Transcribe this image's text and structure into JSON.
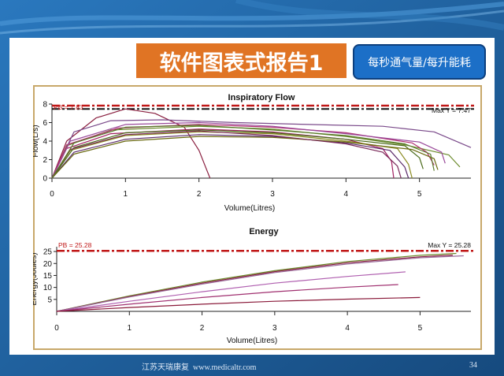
{
  "slide": {
    "title": "软件图表式报告1",
    "subtitle": "每秒通气量/每升能耗",
    "footer": "江苏天瑞康复  www.medicaltr.com",
    "page_number": "34",
    "colors": {
      "background": "#1f5d98",
      "title_bg": "#e07424",
      "subtitle_bg": "#1c6fc7",
      "pb_line": "#c01818"
    }
  },
  "chart_data": [
    {
      "type": "line",
      "title": "Inspiratory Flow",
      "xlabel": "Volume(Litres)",
      "ylabel": "Flow(L/s)",
      "xlim": [
        0,
        5.7
      ],
      "ylim": [
        0,
        8
      ],
      "x_ticks": [
        0,
        1,
        2,
        3,
        4,
        5
      ],
      "y_ticks": [
        0,
        2,
        4,
        6,
        8
      ],
      "reference_lines": [
        {
          "label": "PB = 7.83",
          "y": 7.83
        },
        {
          "label": "Max Y = 7.47",
          "y": 7.47
        }
      ],
      "series": [
        {
          "name": "breath 1",
          "color": "#8a2040",
          "points": [
            [
              0,
              0
            ],
            [
              0.2,
              4
            ],
            [
              0.6,
              6.5
            ],
            [
              1.0,
              7.47
            ],
            [
              1.4,
              7.0
            ],
            [
              1.8,
              5.5
            ],
            [
              2.0,
              3.0
            ],
            [
              2.1,
              1.0
            ],
            [
              2.15,
              0
            ]
          ]
        },
        {
          "name": "breath 2",
          "color": "#7a4a8a",
          "points": [
            [
              0,
              0
            ],
            [
              0.3,
              5
            ],
            [
              0.8,
              6.2
            ],
            [
              1.5,
              6.3
            ],
            [
              2.5,
              6.0
            ],
            [
              3.5,
              5.8
            ],
            [
              4.5,
              5.6
            ],
            [
              5.2,
              5.0
            ],
            [
              5.7,
              3.3
            ]
          ]
        },
        {
          "name": "breath 3",
          "color": "#6a8a2a",
          "points": [
            [
              0,
              0
            ],
            [
              0.2,
              3.5
            ],
            [
              0.8,
              5.2
            ],
            [
              2.0,
              5.6
            ],
            [
              3.0,
              5.3
            ],
            [
              4.0,
              4.5
            ],
            [
              4.8,
              3.6
            ],
            [
              5.4,
              2.5
            ],
            [
              5.55,
              1.2
            ]
          ]
        },
        {
          "name": "breath 4",
          "color": "#a02060",
          "points": [
            [
              0,
              0
            ],
            [
              0.2,
              3.2
            ],
            [
              0.8,
              4.8
            ],
            [
              2.0,
              5.3
            ],
            [
              3.0,
              5.0
            ],
            [
              4.0,
              4.2
            ],
            [
              4.5,
              3.2
            ],
            [
              4.62,
              1.8
            ],
            [
              4.65,
              0
            ]
          ]
        },
        {
          "name": "breath 5",
          "color": "#8a8a20",
          "points": [
            [
              0,
              0
            ],
            [
              0.25,
              3.0
            ],
            [
              1.0,
              4.6
            ],
            [
              2.0,
              5.0
            ],
            [
              3.0,
              4.8
            ],
            [
              4.0,
              4.0
            ],
            [
              4.7,
              3.2
            ],
            [
              4.85,
              1.5
            ],
            [
              4.9,
              0
            ]
          ]
        },
        {
          "name": "breath 6",
          "color": "#5a2a6a",
          "points": [
            [
              0,
              0
            ],
            [
              0.3,
              2.8
            ],
            [
              1.0,
              4.2
            ],
            [
              2.0,
              4.7
            ],
            [
              3.0,
              4.5
            ],
            [
              4.0,
              3.8
            ],
            [
              4.6,
              3.0
            ],
            [
              4.8,
              1.2
            ],
            [
              4.85,
              0
            ]
          ]
        },
        {
          "name": "breath 7",
          "color": "#b03070",
          "points": [
            [
              0,
              0
            ],
            [
              0.2,
              3.6
            ],
            [
              0.9,
              5.4
            ],
            [
              2.0,
              5.8
            ],
            [
              3.0,
              5.5
            ],
            [
              4.0,
              4.9
            ],
            [
              4.9,
              3.8
            ],
            [
              5.1,
              2.8
            ],
            [
              5.2,
              1.4
            ]
          ]
        },
        {
          "name": "breath 8",
          "color": "#4a6a1a",
          "points": [
            [
              0,
              0
            ],
            [
              0.3,
              3.3
            ],
            [
              1.0,
              4.9
            ],
            [
              2.0,
              5.2
            ],
            [
              3.0,
              4.9
            ],
            [
              4.0,
              4.2
            ],
            [
              4.8,
              3.5
            ],
            [
              5.0,
              2.2
            ],
            [
              5.05,
              1.0
            ]
          ]
        },
        {
          "name": "breath 9",
          "color": "#9a4a9a",
          "points": [
            [
              0,
              0
            ],
            [
              0.25,
              4.0
            ],
            [
              1.0,
              5.8
            ],
            [
              2.0,
              6.0
            ],
            [
              3.0,
              5.6
            ],
            [
              4.0,
              4.8
            ],
            [
              5.0,
              3.9
            ],
            [
              5.3,
              2.8
            ],
            [
              5.35,
              1.6
            ]
          ]
        },
        {
          "name": "breath 10",
          "color": "#6a6a10",
          "points": [
            [
              0,
              0
            ],
            [
              0.3,
              2.6
            ],
            [
              1.0,
              4.0
            ],
            [
              2.0,
              4.5
            ],
            [
              3.0,
              4.4
            ],
            [
              4.0,
              3.9
            ],
            [
              4.9,
              3.1
            ],
            [
              5.2,
              2.1
            ],
            [
              5.25,
              0.9
            ]
          ]
        },
        {
          "name": "breath 11",
          "color": "#7a2a5a",
          "points": [
            [
              0,
              0
            ],
            [
              0.25,
              3.1
            ],
            [
              1.0,
              4.7
            ],
            [
              2.0,
              5.1
            ],
            [
              3.0,
              4.6
            ],
            [
              4.0,
              3.7
            ],
            [
              4.5,
              2.8
            ],
            [
              4.7,
              1.3
            ],
            [
              4.75,
              0
            ]
          ]
        },
        {
          "name": "breath 12",
          "color": "#5a7a2a",
          "points": [
            [
              0,
              0
            ],
            [
              0.3,
              3.8
            ],
            [
              1.0,
              5.5
            ],
            [
              2.0,
              5.7
            ],
            [
              3.0,
              5.2
            ],
            [
              4.0,
              4.6
            ],
            [
              4.8,
              3.7
            ],
            [
              5.15,
              2.6
            ],
            [
              5.2,
              0.8
            ]
          ]
        }
      ]
    },
    {
      "type": "line",
      "title": "Energy",
      "xlabel": "Volume(Litres)",
      "ylabel": "Energy(Joules)",
      "xlim": [
        0,
        5.7
      ],
      "ylim": [
        0,
        27
      ],
      "x_ticks": [
        0,
        1,
        2,
        3,
        4,
        5
      ],
      "y_ticks": [
        5,
        10,
        15,
        20,
        25
      ],
      "reference_lines": [
        {
          "label": "PB = 25.28",
          "y": 25.28
        },
        {
          "label": "Max Y = 25.28",
          "y": 25.28
        }
      ],
      "series": [
        {
          "name": "breath 1",
          "color": "#6a8a2a",
          "points": [
            [
              0,
              0
            ],
            [
              1,
              6.5
            ],
            [
              2,
              12.2
            ],
            [
              3,
              17.0
            ],
            [
              4,
              20.8
            ],
            [
              5,
              23.4
            ],
            [
              5.5,
              24.2
            ]
          ]
        },
        {
          "name": "breath 2",
          "color": "#8a2040",
          "points": [
            [
              0,
              0
            ],
            [
              1,
              6.2
            ],
            [
              2,
              11.8
            ],
            [
              3,
              16.6
            ],
            [
              4,
              20.3
            ],
            [
              5,
              22.8
            ],
            [
              5.45,
              23.5
            ]
          ]
        },
        {
          "name": "breath 3",
          "color": "#9a6a9a",
          "points": [
            [
              0,
              0
            ],
            [
              1,
              6.0
            ],
            [
              2,
              11.4
            ],
            [
              3,
              16.2
            ],
            [
              4,
              19.8
            ],
            [
              5,
              22.4
            ],
            [
              5.6,
              23.2
            ]
          ]
        },
        {
          "name": "breath 4",
          "color": "#b060b0",
          "points": [
            [
              0,
              0
            ],
            [
              1,
              4.2
            ],
            [
              2,
              8.2
            ],
            [
              3,
              11.8
            ],
            [
              4,
              14.6
            ],
            [
              4.8,
              16.5
            ]
          ]
        },
        {
          "name": "breath 5",
          "color": "#a03070",
          "points": [
            [
              0,
              0
            ],
            [
              1,
              3.0
            ],
            [
              2,
              5.8
            ],
            [
              3,
              8.2
            ],
            [
              4,
              10.1
            ],
            [
              4.7,
              11.2
            ]
          ]
        },
        {
          "name": "breath 6",
          "color": "#8a1a3a",
          "points": [
            [
              0,
              0
            ],
            [
              1,
              1.6
            ],
            [
              2,
              3.0
            ],
            [
              3,
              4.2
            ],
            [
              4,
              5.1
            ],
            [
              5,
              5.8
            ]
          ]
        }
      ]
    }
  ]
}
